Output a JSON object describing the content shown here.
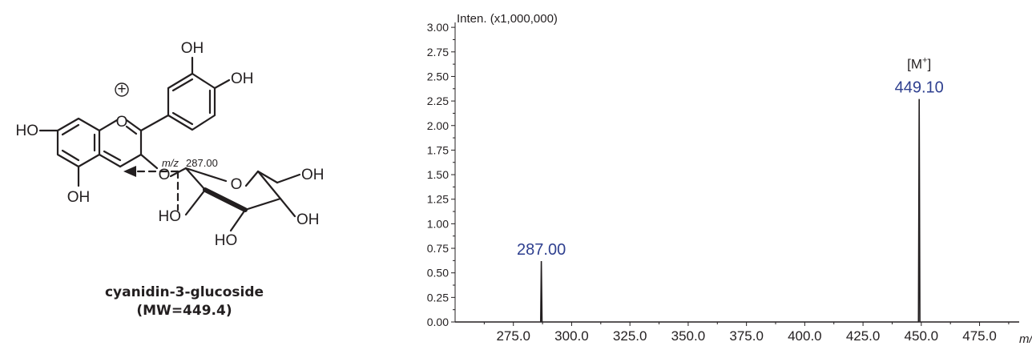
{
  "compound": {
    "name": "cyanidin-3-glucoside",
    "mw": "(MW=449.4)"
  },
  "structure": {
    "atoms": {
      "oh_top": "OH",
      "oh_right": "OH",
      "ho_left": "HO",
      "oh_bottom": "OH",
      "oxonium_o": "O",
      "glycosidic_o": "O",
      "ring_o": "O",
      "oh_ch2": "OH",
      "ho_sugar_left": "HO",
      "ho_sugar_bottom": "HO",
      "oh_sugar_right": "OH",
      "charge": "+"
    },
    "fragment": {
      "mz_label": "m/z",
      "value": "287.00"
    }
  },
  "chart_data": {
    "type": "line",
    "title": "",
    "ylabel": "Inten. (x1,000,000)",
    "xlabel": "m/z",
    "xlim": [
      250,
      492
    ],
    "ylim": [
      0,
      3.05
    ],
    "x_ticks": [
      "275.0",
      "300.0",
      "325.0",
      "350.0",
      "375.0",
      "400.0",
      "425.0",
      "450.0",
      "475.0"
    ],
    "y_ticks": [
      "0.00",
      "0.25",
      "0.50",
      "0.75",
      "1.00",
      "1.25",
      "1.50",
      "1.75",
      "2.00",
      "2.25",
      "2.50",
      "2.75",
      "3.00"
    ],
    "series": [
      {
        "x": [
          250,
          286.7,
          287.0,
          287.3,
          448.8,
          449.1,
          449.4,
          492
        ],
        "y": [
          0.0,
          0.0,
          0.62,
          0.0,
          0.0,
          2.27,
          0.0,
          0.0
        ]
      }
    ],
    "peaks": [
      {
        "mz": 287.0,
        "intensity": 0.62,
        "label": "287.00"
      },
      {
        "mz": 449.1,
        "intensity": 2.27,
        "label": "449.10",
        "ion_main": "[M",
        "ion_sup": "+",
        "ion_close": "]"
      }
    ],
    "grid": false,
    "colors": {
      "trace": "#231f20",
      "peak_label": "#2e3f8f"
    }
  }
}
